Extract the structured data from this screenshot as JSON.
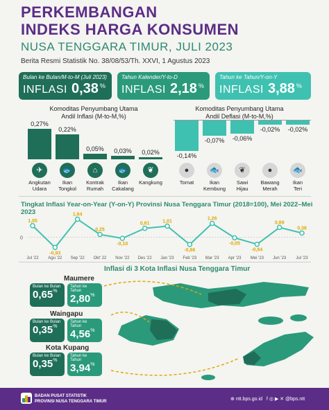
{
  "header": {
    "title_line1": "PERKEMBANGAN",
    "title_line2": "INDEKS HARGA KONSUMEN",
    "subtitle": "NUSA TENGGARA TIMUR, JULI 2023",
    "berita": "Berita Resmi Statistik No. 38/08/53/Th. XXVI, 1 Agustus 2023"
  },
  "inflation_boxes": [
    {
      "label": "Bulan ke Bulan/M-to-M (Juli 2023)",
      "keyword": "INFLASI",
      "value": "0,38",
      "unit": "%"
    },
    {
      "label": "Tahun Kalender/Y-to-D",
      "keyword": "INFLASI",
      "value": "2,18",
      "unit": "%"
    },
    {
      "label": "Tahun ke Tahun/Y-on-Y",
      "keyword": "INFLASI",
      "value": "3,88",
      "unit": "%"
    }
  ],
  "inflasi_komoditas": {
    "title_line1": "Komoditas Penyumbang Utama",
    "title_line2": "Andil Inflasi (M-to-M,%)",
    "items": [
      {
        "value_label": "0,27%",
        "value": 0.27,
        "name_line1": "Angkutan",
        "name_line2": "Udara",
        "icon": "airplane-icon",
        "glyph": "✈"
      },
      {
        "value_label": "0,22%",
        "value": 0.22,
        "name_line1": "Ikan",
        "name_line2": "Tongkol",
        "icon": "fish-icon",
        "glyph": "🐟"
      },
      {
        "value_label": "0,05%",
        "value": 0.05,
        "name_line1": "Kontrak",
        "name_line2": "Rumah",
        "icon": "house-icon",
        "glyph": "⌂"
      },
      {
        "value_label": "0,03%",
        "value": 0.03,
        "name_line1": "Ikan",
        "name_line2": "Cakalang",
        "icon": "fish-icon",
        "glyph": "🐟"
      },
      {
        "value_label": "0,02%",
        "value": 0.02,
        "name_line1": "Kangkung",
        "name_line2": "",
        "icon": "vegetable-icon",
        "glyph": "❦"
      }
    ]
  },
  "deflasi_komoditas": {
    "title_line1": "Komoditas Penyumbang Utama",
    "title_line2": "Andil Deflasi (M-to-M,%)",
    "items": [
      {
        "value_label": "-0,14%",
        "value": -0.14,
        "name_line1": "Tomat",
        "name_line2": "",
        "icon": "tomato-icon",
        "glyph": "●"
      },
      {
        "value_label": "-0,07%",
        "value": -0.07,
        "name_line1": "Ikan",
        "name_line2": "Kembung",
        "icon": "fish-icon",
        "glyph": "🐟"
      },
      {
        "value_label": "-0,06%",
        "value": -0.06,
        "name_line1": "Sawi",
        "name_line2": "Hijau",
        "icon": "vegetable-icon",
        "glyph": "❦"
      },
      {
        "value_label": "-0,02%",
        "value": -0.02,
        "name_line1": "Bawang",
        "name_line2": "Merah",
        "icon": "onion-icon",
        "glyph": "●"
      },
      {
        "value_label": "-0,02%",
        "value": -0.02,
        "name_line1": "Ikan",
        "name_line2": "Teri",
        "icon": "fish-icon",
        "glyph": "🐟"
      }
    ]
  },
  "line_chart_title": "Tingkat Inflasi Year-on-Year (Y-on-Y) Provinsi Nusa Tenggara Timur (2018=100), Mei 2022–Mei 2023",
  "chart_data": {
    "type": "line",
    "title": "",
    "categories": [
      "Jul '22",
      "Aug '22",
      "Sep '22",
      "Oct '22",
      "Nov '22",
      "Dec '22",
      "Jan '23",
      "Feb '23",
      "Mar '23",
      "Apr '23",
      "May '23",
      "Jun '23",
      "Jul '23"
    ],
    "tick_labels": [
      "Jul '22",
      "Agu '22",
      "Sep '22",
      "Okt' 22",
      "Nov '22",
      "Des '22",
      "Jan '23",
      "Feb '23",
      "Mar '23",
      "Apr '23",
      "Mei '23",
      "Jun '23",
      "Jul '23"
    ],
    "values": [
      1.05,
      -0.93,
      1.64,
      0.25,
      -0.1,
      0.81,
      1.01,
      -0.66,
      1.26,
      -0.05,
      -0.64,
      0.89,
      0.38
    ],
    "value_labels": [
      "1,05",
      "-0,93",
      "1,64",
      "0,25",
      "-0,10",
      "0,81",
      "1,01",
      "-0,66",
      "1,26",
      "-0,05",
      "-0,64",
      "0,89",
      "0,38"
    ],
    "zero_label": "0",
    "line_color": "#3fc1b1",
    "label_color": "#e0a800"
  },
  "map_section": {
    "title": "Inflasi di 3 Kota Inflasi Nusa Tenggara Timur",
    "cities": [
      {
        "name": "Maumere",
        "mtom_label": "Bulan ke Bulan",
        "mtom": "0,65",
        "yony_label": "Tahun ke Tahun",
        "yony": "2,80",
        "unit": "%"
      },
      {
        "name": "Waingapu",
        "mtom_label": "Bulan ke Bulan",
        "mtom": "0,35",
        "yony_label": "Tahun ke Tahun",
        "yony": "4,56",
        "unit": "%"
      },
      {
        "name": "Kota Kupang",
        "mtom_label": "Bulan ke Bulan",
        "mtom": "0,35",
        "yony_label": "Tahun ke Tahun",
        "yony": "3,94",
        "unit": "%"
      }
    ]
  },
  "footer": {
    "org_line1": "BADAN PUSAT STATISTIK",
    "org_line2": "PROVINSI NUSA TENGGARA TIMUR",
    "website": "ntt.bps.go.id",
    "social": "@bps.ntt"
  },
  "colors": {
    "purple": "#5b2d86",
    "dark_green": "#1f6e58",
    "green": "#2a9a7b",
    "teal": "#3fc1b1",
    "orange": "#e0a800"
  }
}
